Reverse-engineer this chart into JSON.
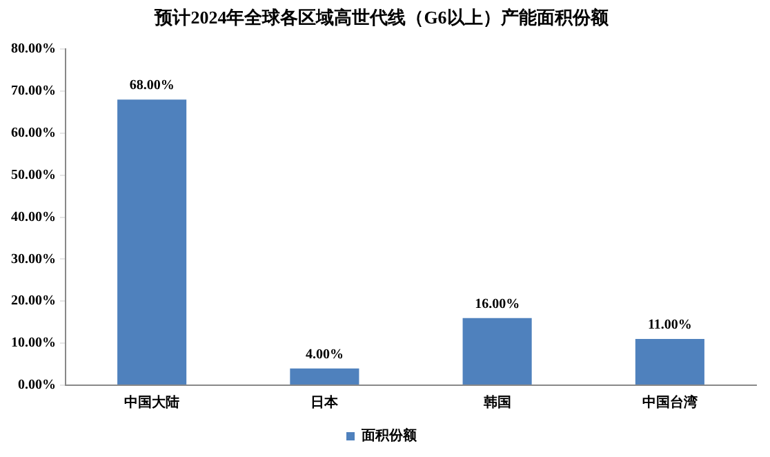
{
  "chart_data": {
    "type": "bar",
    "title": "预计2024年全球各区域高世代线（G6以上）产能面积份额",
    "categories": [
      "中国大陆",
      "日本",
      "韩国",
      "中国台湾"
    ],
    "series": [
      {
        "name": "面积份额",
        "color": "#4f81bd",
        "values": [
          68,
          4,
          16,
          11
        ],
        "value_labels": [
          "68.00%",
          "4.00%",
          "16.00%",
          "11.00%"
        ]
      }
    ],
    "ylim": [
      0,
      80
    ],
    "yticks": [
      {
        "value": 0,
        "label": "0.00%"
      },
      {
        "value": 10,
        "label": "10.00%"
      },
      {
        "value": 20,
        "label": "20.00%"
      },
      {
        "value": 30,
        "label": "30.00%"
      },
      {
        "value": 40,
        "label": "40.00%"
      },
      {
        "value": 50,
        "label": "50.00%"
      },
      {
        "value": 60,
        "label": "60.00%"
      },
      {
        "value": 70,
        "label": "70.00%"
      },
      {
        "value": 80,
        "label": "80.00%"
      }
    ],
    "grid": false,
    "legend": "bottom"
  }
}
